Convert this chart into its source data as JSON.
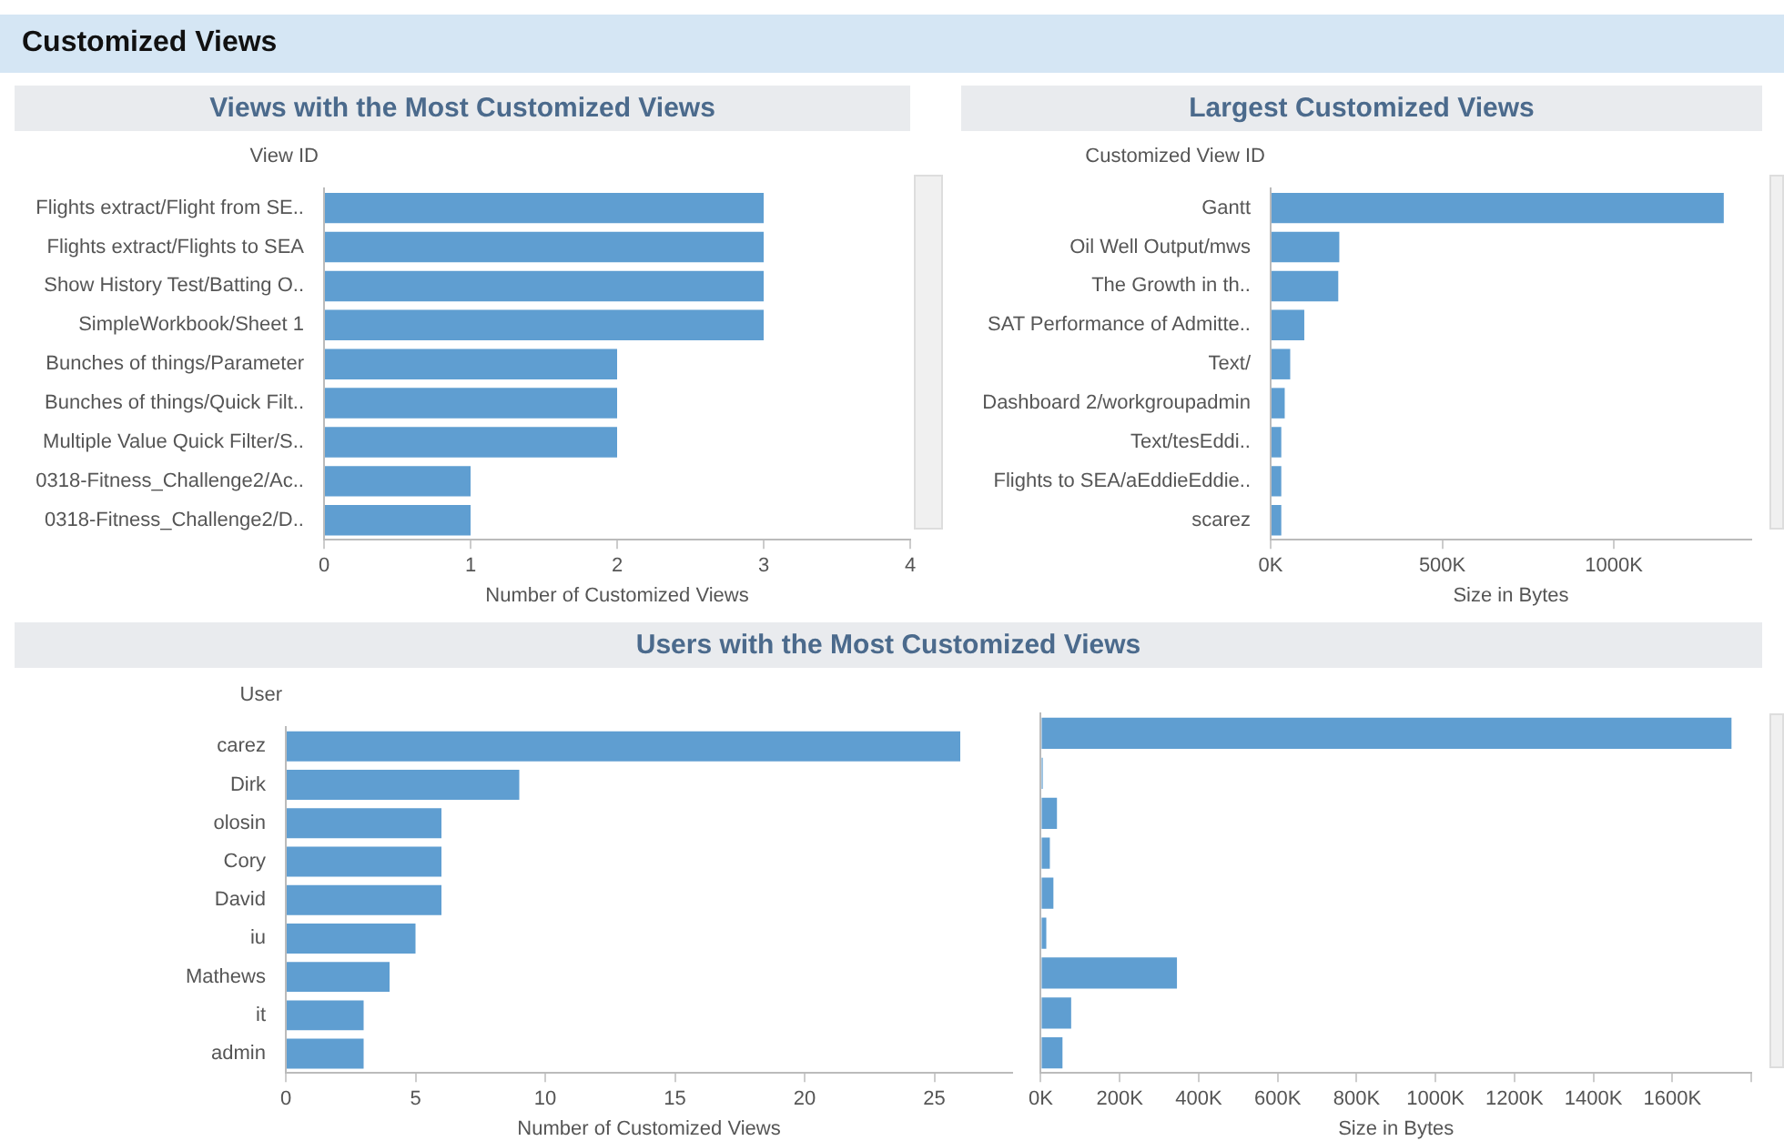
{
  "chart_data": [
    {
      "type": "other",
      "title": "Customized Views"
    },
    {
      "type": "bar",
      "orientation": "horizontal",
      "title": "Views with the Most Customized Views",
      "ylabel": "View ID",
      "xlabel": "Number of Customized Views",
      "color": "#5f9ed1",
      "categories": [
        "Flights extract/Flight from SE..",
        "Flights extract/Flights to SEA",
        "Show History Test/Batting O..",
        "SimpleWorkbook/Sheet 1",
        "Bunches of things/Parameter",
        "Bunches of things/Quick Filt..",
        "Multiple Value Quick Filter/S..",
        "0318-Fitness_Challenge2/Ac..",
        "0318-Fitness_Challenge2/D.."
      ],
      "values": [
        3,
        3,
        3,
        3,
        2,
        2,
        2,
        1,
        1
      ],
      "xlim": [
        0,
        4
      ],
      "xticks": [
        0,
        1,
        2,
        3,
        4
      ]
    },
    {
      "type": "bar",
      "orientation": "horizontal",
      "title": "Largest Customized Views",
      "ylabel": "Customized View ID",
      "xlabel": "Size in Bytes",
      "color": "#5f9ed1",
      "categories": [
        "Gantt",
        "Oil Well Output/mws",
        "The Growth in th..",
        "SAT Performance of Admitte..",
        "Text/",
        "Dashboard 2/workgroupadmin",
        "Text/tesEddi..",
        "Flights to SEA/aEddieEddie..",
        "scarez"
      ],
      "values": [
        1320000,
        200000,
        197000,
        98000,
        57000,
        41000,
        31000,
        31000,
        31000
      ],
      "xlim": [
        0,
        1400000
      ],
      "xticks": [
        {
          "value": 0,
          "label": "0K"
        },
        {
          "value": 500000,
          "label": "500K"
        },
        {
          "value": 1000000,
          "label": "1000K"
        }
      ]
    },
    {
      "type": "bar",
      "orientation": "horizontal",
      "title": "Users with the Most Customized Views",
      "ylabel": "User",
      "xlabel": "Number of Customized Views",
      "color": "#5f9ed1",
      "categories": [
        "carez",
        "Dirk",
        "olosin",
        "Cory",
        "David",
        "iu",
        "Mathews",
        "it",
        "admin"
      ],
      "values": [
        26,
        9,
        6,
        6,
        6,
        5,
        4,
        3,
        3
      ],
      "xlim": [
        0,
        28
      ],
      "xticks": [
        0,
        5,
        10,
        15,
        20,
        25
      ]
    },
    {
      "type": "bar",
      "orientation": "horizontal",
      "xlabel": "Size in Bytes",
      "color": "#5f9ed1",
      "tick_labels": "x",
      "categories": [
        null,
        null,
        null,
        null,
        null,
        null,
        null,
        null,
        null
      ],
      "values": [
        1750000,
        5000,
        41000,
        23000,
        32000,
        14000,
        345000,
        77000,
        55000
      ],
      "xlim": [
        0,
        1800000
      ],
      "xticks": [
        {
          "value": 0,
          "label": "0K"
        },
        {
          "value": 200000,
          "label": "200K"
        },
        {
          "value": 400000,
          "label": "400K"
        },
        {
          "value": 600000,
          "label": "600K"
        },
        {
          "value": 800000,
          "label": "800K"
        },
        {
          "value": 1000000,
          "label": "1000K"
        },
        {
          "value": 1200000,
          "label": "1200K"
        },
        {
          "value": 1400000,
          "label": "1400K"
        },
        {
          "value": 1600000,
          "label": "1600K"
        },
        {
          "value": 1800000,
          "label": null
        }
      ]
    }
  ]
}
